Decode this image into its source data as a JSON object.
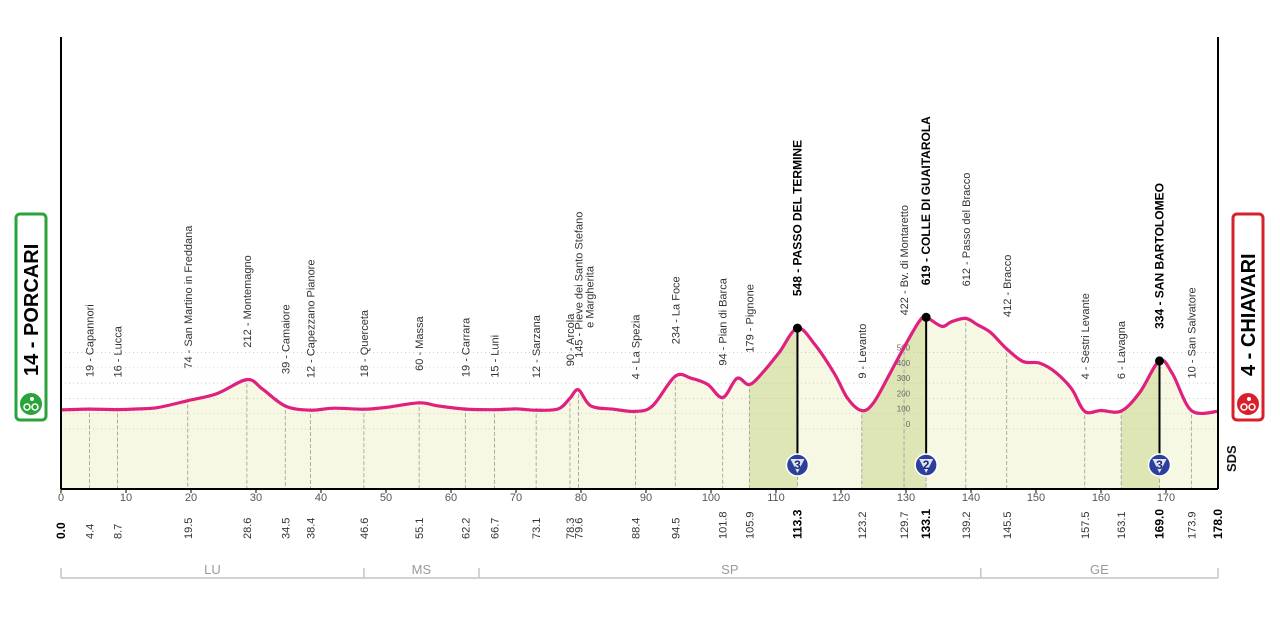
{
  "chart_data": {
    "type": "area",
    "xlim": [
      0,
      178
    ],
    "ylim": [
      0,
      700
    ],
    "x_ticks": [
      0,
      10,
      20,
      30,
      40,
      50,
      60,
      70,
      80,
      90,
      100,
      110,
      120,
      130,
      140,
      150,
      160,
      170
    ],
    "altitude_scale_ticks": [
      "500",
      "400",
      "300",
      "200",
      "100",
      "0"
    ],
    "start": {
      "label": "14 - PORCARI",
      "distance": "0.0"
    },
    "finish": {
      "label": "4 - CHIAVARI",
      "distance": "178.0"
    },
    "profile": [
      [
        0,
        14
      ],
      [
        4.4,
        19
      ],
      [
        8.7,
        16
      ],
      [
        12,
        20
      ],
      [
        15,
        30
      ],
      [
        19.5,
        74
      ],
      [
        24,
        120
      ],
      [
        28.6,
        212
      ],
      [
        31,
        150
      ],
      [
        34.5,
        39
      ],
      [
        38.4,
        12
      ],
      [
        42,
        25
      ],
      [
        46.6,
        18
      ],
      [
        50,
        30
      ],
      [
        55.1,
        60
      ],
      [
        58,
        40
      ],
      [
        62.2,
        19
      ],
      [
        66.7,
        15
      ],
      [
        70,
        20
      ],
      [
        73.1,
        12
      ],
      [
        76.5,
        20
      ],
      [
        78.3,
        90
      ],
      [
        79.6,
        145
      ],
      [
        81.5,
        40
      ],
      [
        85,
        18
      ],
      [
        88.4,
        4
      ],
      [
        91,
        40
      ],
      [
        94.5,
        234
      ],
      [
        97,
        220
      ],
      [
        99.5,
        180
      ],
      [
        101.8,
        94
      ],
      [
        104,
        220
      ],
      [
        105.9,
        179
      ],
      [
        108,
        260
      ],
      [
        110.5,
        390
      ],
      [
        113.3,
        548
      ],
      [
        116,
        440
      ],
      [
        119,
        250
      ],
      [
        121,
        90
      ],
      [
        123.2,
        9
      ],
      [
        125,
        60
      ],
      [
        127.5,
        250
      ],
      [
        129.7,
        422
      ],
      [
        132,
        590
      ],
      [
        133.1,
        619
      ],
      [
        135.5,
        560
      ],
      [
        137,
        590
      ],
      [
        139.2,
        612
      ],
      [
        141,
        570
      ],
      [
        143,
        520
      ],
      [
        145.5,
        412
      ],
      [
        148,
        330
      ],
      [
        150.5,
        320
      ],
      [
        153,
        260
      ],
      [
        155.5,
        150
      ],
      [
        157.5,
        4
      ],
      [
        160,
        10
      ],
      [
        163.1,
        6
      ],
      [
        166,
        130
      ],
      [
        169,
        334
      ],
      [
        171,
        250
      ],
      [
        173.9,
        10
      ],
      [
        178,
        4
      ]
    ],
    "climbs_shaded": [
      [
        105.9,
        113.3
      ],
      [
        123.2,
        133.1
      ],
      [
        163.1,
        169.0
      ]
    ],
    "kom": [
      {
        "distance": 113.3,
        "altitude": 548,
        "category": "3"
      },
      {
        "distance": 133.1,
        "altitude": 619,
        "category": "2"
      },
      {
        "distance": 169.0,
        "altitude": 334,
        "category": "3"
      }
    ],
    "places": [
      {
        "d": 4.4,
        "dist": "4.4",
        "name": "19 - Capannori",
        "alt": 19,
        "bold": false
      },
      {
        "d": 8.7,
        "dist": "8.7",
        "name": "16 - Lucca",
        "alt": 16,
        "bold": false
      },
      {
        "d": 19.5,
        "dist": "19.5",
        "name": "74 - San Martino in Freddana",
        "alt": 74,
        "bold": false
      },
      {
        "d": 28.6,
        "dist": "28.6",
        "name": "212 - Montemagno",
        "alt": 212,
        "bold": false
      },
      {
        "d": 34.5,
        "dist": "34.5",
        "name": "39 - Camaiore",
        "alt": 39,
        "bold": false
      },
      {
        "d": 38.4,
        "dist": "38.4",
        "name": "12 - Capezzano Pianore",
        "alt": 12,
        "bold": false
      },
      {
        "d": 46.6,
        "dist": "46.6",
        "name": "18 - Querceta",
        "alt": 18,
        "bold": false
      },
      {
        "d": 55.1,
        "dist": "55.1",
        "name": "60 - Massa",
        "alt": 60,
        "bold": false
      },
      {
        "d": 62.2,
        "dist": "62.2",
        "name": "19 - Carrara",
        "alt": 19,
        "bold": false
      },
      {
        "d": 66.7,
        "dist": "66.7",
        "name": "15 - Luni",
        "alt": 15,
        "bold": false
      },
      {
        "d": 73.1,
        "dist": "73.1",
        "name": "12 - Sarzana",
        "alt": 12,
        "bold": false
      },
      {
        "d": 78.3,
        "dist": "78.3",
        "name": "90 - Arcola",
        "alt": 90,
        "bold": false
      },
      {
        "d": 79.6,
        "dist": "79.6",
        "name": "145 - Pieve dei Santo Stefano",
        "name2": "e Margherita",
        "alt": 145,
        "bold": false
      },
      {
        "d": 88.4,
        "dist": "88.4",
        "name": "4 - La Spezia",
        "alt": 4,
        "bold": false
      },
      {
        "d": 94.5,
        "dist": "94.5",
        "name": "234 - La Foce",
        "alt": 234,
        "bold": false
      },
      {
        "d": 101.8,
        "dist": "101.8",
        "name": "94 - Pian di Barca",
        "alt": 94,
        "bold": false
      },
      {
        "d": 105.9,
        "dist": "105.9",
        "name": "179 - Pignone",
        "alt": 179,
        "bold": false
      },
      {
        "d": 113.3,
        "dist": "113.3",
        "name": "548 - PASSO DEL TERMINE",
        "alt": 548,
        "bold": true
      },
      {
        "d": 123.2,
        "dist": "123.2",
        "name": "9 - Levanto",
        "alt": 9,
        "bold": false
      },
      {
        "d": 129.7,
        "dist": "129.7",
        "name": "422 - Bv. di Montaretto",
        "alt": 422,
        "bold": false
      },
      {
        "d": 133.1,
        "dist": "133.1",
        "name": "619 - COLLE DI GUAITAROLA",
        "alt": 619,
        "bold": true
      },
      {
        "d": 139.2,
        "dist": "139.2",
        "name": "612 - Passo del Bracco",
        "alt": 612,
        "bold": false
      },
      {
        "d": 145.5,
        "dist": "145.5",
        "name": "412 - Bracco",
        "alt": 412,
        "bold": false
      },
      {
        "d": 157.5,
        "dist": "157.5",
        "name": "4 - Sestri Levante",
        "alt": 4,
        "bold": false
      },
      {
        "d": 163.1,
        "dist": "163.1",
        "name": "6 - Lavagna",
        "alt": 6,
        "bold": false
      },
      {
        "d": 169.0,
        "dist": "169.0",
        "name": "334 - SAN BARTOLOMEO",
        "alt": 334,
        "bold": true
      },
      {
        "d": 173.9,
        "dist": "173.9",
        "name": "10 - San Salvatore",
        "alt": 10,
        "bold": false
      }
    ],
    "regions": [
      {
        "label": "LU",
        "from": 0,
        "to": 46.6
      },
      {
        "label": "MS",
        "from": 46.6,
        "to": 64.3
      },
      {
        "label": "SP",
        "from": 64.3,
        "to": 141.5
      },
      {
        "label": "GE",
        "from": 141.5,
        "to": 178
      }
    ],
    "sprint_mark": "SDS",
    "colors": {
      "line": "#e0207e",
      "fill": "#f7f8e4",
      "climb": "#dfe6b6",
      "start": "#2aa33a",
      "finish": "#d8202a",
      "kom_badge": "#2b3f9c"
    }
  }
}
